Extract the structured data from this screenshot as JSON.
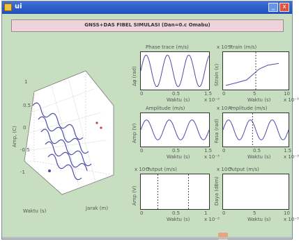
{
  "window": {
    "title": "ui",
    "min_label": "_",
    "close_label": "x"
  },
  "header": {
    "text": "GNSS+DAS FIBEL SIMULASI (Dan=0.c Omabu)"
  },
  "plot3d": {
    "title": "",
    "z_ticks": [
      "1",
      "0.5",
      "0",
      "-0.5",
      "-1"
    ],
    "z_label": "Amp, (C)",
    "x_label": "Waktu (s)",
    "y_label": "Jarak (m)"
  },
  "panels": [
    {
      "id": "p1",
      "title": "Phase trace (m/s)",
      "ylabel": "Δφ (rad)",
      "xlabel": "Waktu (s)",
      "xticks": [
        "0",
        "0.5",
        "1.5"
      ],
      "xexp": "x 10⁻³",
      "yexp": ""
    },
    {
      "id": "p2",
      "title": "Strain (m/s)",
      "ylabel": "Strain (ε)",
      "xlabel": "Waktu (s)",
      "xticks": [
        "0",
        "5",
        "10"
      ],
      "xexp": "x 10⁻³",
      "yexp": "x 10⁻⁶"
    },
    {
      "id": "p3",
      "title": "Amplitude (m/s)",
      "ylabel": "Amp (V)",
      "xlabel": "Waktu (s)",
      "xticks": [
        "0",
        "0.5",
        "1.5"
      ],
      "xexp": "x 10⁻³",
      "yexp": ""
    },
    {
      "id": "p4",
      "title": "Amplitude (m/s)",
      "ylabel": "Fasa (rad)",
      "xlabel": "Waktu (s)",
      "xticks": [
        "0",
        "0.5",
        "1.5"
      ],
      "xexp": "x 10⁻³",
      "yexp": "x 10⁻⁶"
    },
    {
      "id": "p5",
      "title": "Output (m/s)",
      "ylabel": "Amp (V)",
      "xlabel": "Waktu (s)",
      "xticks": [
        "0",
        "0.5",
        "1"
      ],
      "xexp": "x 10⁻³",
      "yexp": "x 10⁻⁶"
    },
    {
      "id": "p6",
      "title": "Output (m/s)",
      "ylabel": "Daya (dBm)",
      "xlabel": "Waktu (s)",
      "xticks": [
        "0",
        "5",
        "10"
      ],
      "xexp": "x 10⁻³",
      "yexp": "x 10⁻⁶"
    }
  ],
  "colors": {
    "trace": "#4b4ba8",
    "marker": "#222222",
    "accent_red": "#c43a3a"
  }
}
